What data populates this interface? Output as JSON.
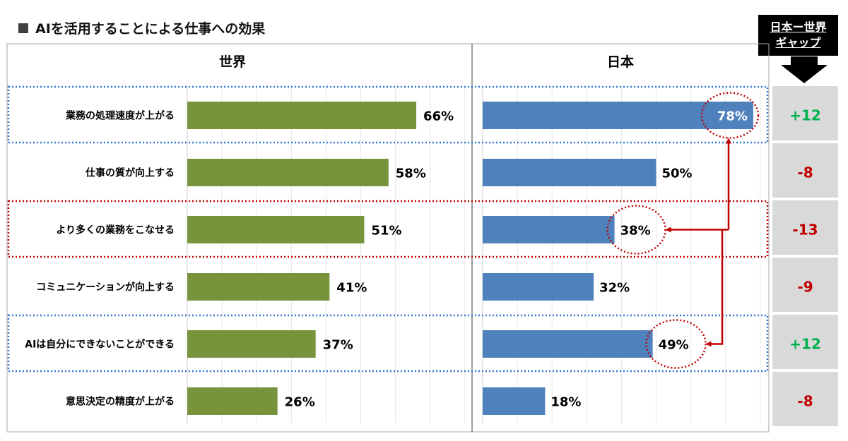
{
  "title": "AIを活用することによる仕事への効果",
  "gap_header": {
    "line1": "日本ー世界",
    "line2": "ギャップ"
  },
  "colors": {
    "world": "#77933c",
    "japan": "#4f81bd",
    "positive": "#00b050",
    "negative": "#c00000",
    "gap_bg": "#d9d9d9",
    "blue_box": "#2e75d6",
    "red_box": "#c00000"
  },
  "chart_data": {
    "type": "bar",
    "orientation": "horizontal",
    "title": "AIを活用することによる仕事への効果",
    "xlim": [
      0,
      100
    ],
    "categories": [
      "業務の処理速度が上がる",
      "仕事の質が向上する",
      "より多くの業務をこなせる",
      "コミュニケーションが向上する",
      "AIは自分にできないことができる",
      "意思決定の精度が上がる"
    ],
    "series": [
      {
        "name": "世界",
        "values": [
          66,
          58,
          51,
          41,
          37,
          26
        ],
        "labels": [
          "66%",
          "58%",
          "51%",
          "41%",
          "37%",
          "26%"
        ]
      },
      {
        "name": "日本",
        "values": [
          78,
          50,
          38,
          32,
          49,
          18
        ],
        "labels": [
          "78%",
          "50%",
          "38%",
          "32%",
          "49%",
          "18%"
        ]
      }
    ],
    "gap": {
      "labels": [
        "+12",
        "-8",
        "-13",
        "-9",
        "+12",
        "-8"
      ],
      "values": [
        12,
        -8,
        -13,
        -9,
        12,
        -8
      ]
    },
    "highlight": {
      "blue_rows": [
        0,
        4
      ],
      "red_rows": [
        2
      ],
      "circled_japan": [
        0,
        2,
        4
      ]
    }
  }
}
